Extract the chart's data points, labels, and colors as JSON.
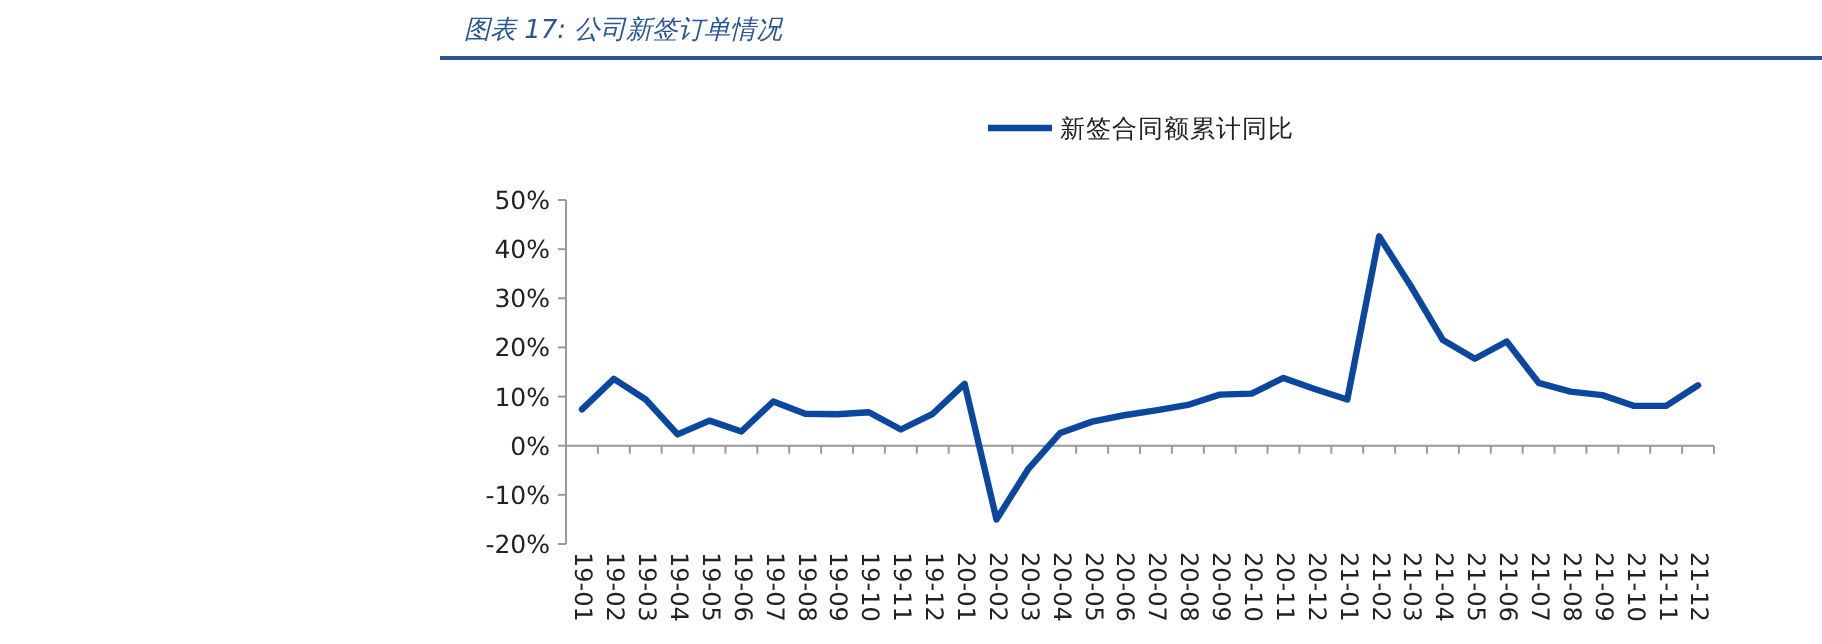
{
  "chart_data": {
    "type": "line",
    "title": "图表 17: 公司新签订单情况",
    "categories": [
      "19-01",
      "19-02",
      "19-03",
      "19-04",
      "19-05",
      "19-06",
      "19-07",
      "19-08",
      "19-09",
      "19-10",
      "19-11",
      "19-12",
      "20-01",
      "20-02",
      "20-03",
      "20-04",
      "20-05",
      "20-06",
      "20-07",
      "20-08",
      "20-09",
      "20-10",
      "20-11",
      "20-12",
      "21-01",
      "21-02",
      "21-03",
      "21-04",
      "21-05",
      "21-06",
      "21-07",
      "21-08",
      "21-09",
      "21-10",
      "21-11",
      "21-12"
    ],
    "series": [
      {
        "name": "新签合同额累计同比",
        "color": "#0b479e",
        "values": [
          7.4,
          13.6,
          9.4,
          2.3,
          5.1,
          2.9,
          9.0,
          6.5,
          6.4,
          6.8,
          3.3,
          6.5,
          12.6,
          -15,
          -4.7,
          2.6,
          4.9,
          6.2,
          7.2,
          8.3,
          10.4,
          10.6,
          13.8,
          11.5,
          9.4,
          42.6,
          32.4,
          21.5,
          17.7,
          21.2,
          12.8,
          11.0,
          10.3,
          8.1,
          8.1,
          12.3
        ]
      }
    ],
    "ylim": [
      -20,
      50
    ],
    "yticks": [
      {
        "value": -20,
        "label": "-20%"
      },
      {
        "value": -10,
        "label": "-10%"
      },
      {
        "value": 0,
        "label": "0%"
      },
      {
        "value": 10,
        "label": "10%"
      },
      {
        "value": 20,
        "label": "20%"
      },
      {
        "value": 30,
        "label": "30%"
      },
      {
        "value": 40,
        "label": "40%"
      },
      {
        "value": 50,
        "label": "50%"
      }
    ],
    "legend": "top",
    "line_style": "solid",
    "marker": "none"
  }
}
